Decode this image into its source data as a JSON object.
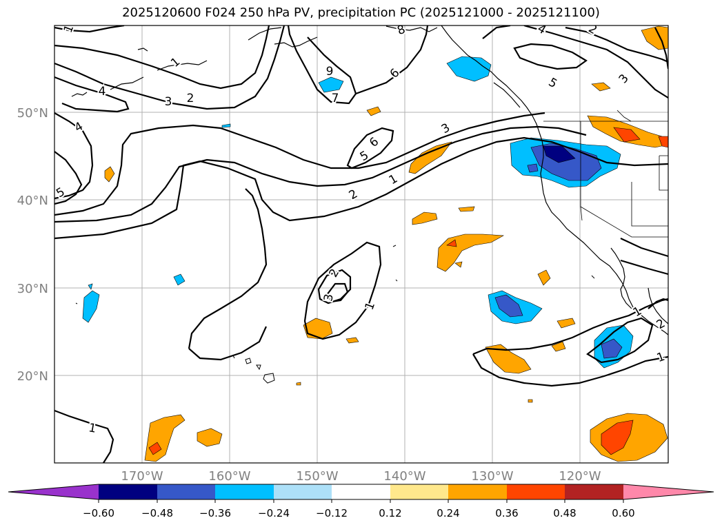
{
  "title": "2025120600 F024 250 hPa PV, precipitation PC (2025121000 - 2025121100)",
  "map": {
    "lat_labels": [
      "50°N",
      "40°N",
      "30°N",
      "20°N"
    ],
    "lon_labels": [
      "170°W",
      "160°W",
      "150°W",
      "140°W",
      "130°W",
      "120°W"
    ],
    "contour_labels": [
      {
        "text": "1"
      },
      {
        "text": "1"
      },
      {
        "text": "2"
      },
      {
        "text": "3"
      },
      {
        "text": "4"
      },
      {
        "text": "4"
      },
      {
        "text": "5"
      },
      {
        "text": "8"
      },
      {
        "text": "9"
      },
      {
        "text": "7"
      },
      {
        "text": "6"
      },
      {
        "text": "6"
      },
      {
        "text": "5"
      },
      {
        "text": "3"
      },
      {
        "text": "2"
      },
      {
        "text": "1"
      },
      {
        "text": "4"
      },
      {
        "text": "2"
      },
      {
        "text": "5"
      },
      {
        "text": "3"
      },
      {
        "text": "2"
      },
      {
        "text": "3"
      },
      {
        "text": "1"
      },
      {
        "text": "1"
      },
      {
        "text": "1"
      },
      {
        "text": "1"
      },
      {
        "text": "2"
      }
    ]
  },
  "colorbar": {
    "colors": [
      "#9932CC",
      "#000080",
      "#3658C8",
      "#00BFFF",
      "#ADE0F8",
      "#FFFFFF",
      "#FFE88C",
      "#FFA500",
      "#FF4500",
      "#B22222",
      "#FF88AA"
    ],
    "tick_labels": [
      "−0.60",
      "−0.48",
      "−0.36",
      "−0.24",
      "−0.12",
      "0.12",
      "0.24",
      "0.36",
      "0.48",
      "0.60"
    ]
  }
}
